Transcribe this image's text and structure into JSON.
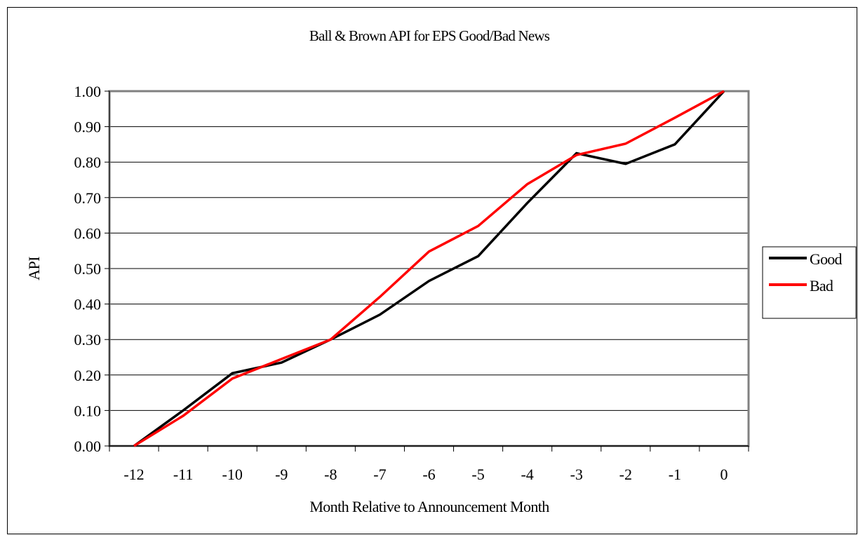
{
  "chart_data": {
    "type": "line",
    "title": "Ball & Brown API for EPS Good/Bad News",
    "xlabel": "Month Relative to Announcement Month",
    "ylabel": "API",
    "categories": [
      "-12",
      "-11",
      "-10",
      "-9",
      "-8",
      "-7",
      "-6",
      "-5",
      "-4",
      "-3",
      "-2",
      "-1",
      "0"
    ],
    "yticks": [
      "0.00",
      "0.10",
      "0.20",
      "0.30",
      "0.40",
      "0.50",
      "0.60",
      "0.70",
      "0.80",
      "0.90",
      "1.00"
    ],
    "ylim": [
      0,
      1
    ],
    "grid": "horizontal",
    "legend_position": "right",
    "series": [
      {
        "name": "Good",
        "color": "#000000",
        "values": [
          0.0,
          0.1,
          0.205,
          0.235,
          0.3,
          0.37,
          0.465,
          0.535,
          0.685,
          0.825,
          0.795,
          0.85,
          1.0
        ]
      },
      {
        "name": "Bad",
        "color": "#ff0000",
        "values": [
          0.0,
          0.085,
          0.19,
          0.245,
          0.3,
          0.42,
          0.548,
          0.62,
          0.738,
          0.82,
          0.852,
          0.925,
          1.0
        ]
      }
    ]
  }
}
